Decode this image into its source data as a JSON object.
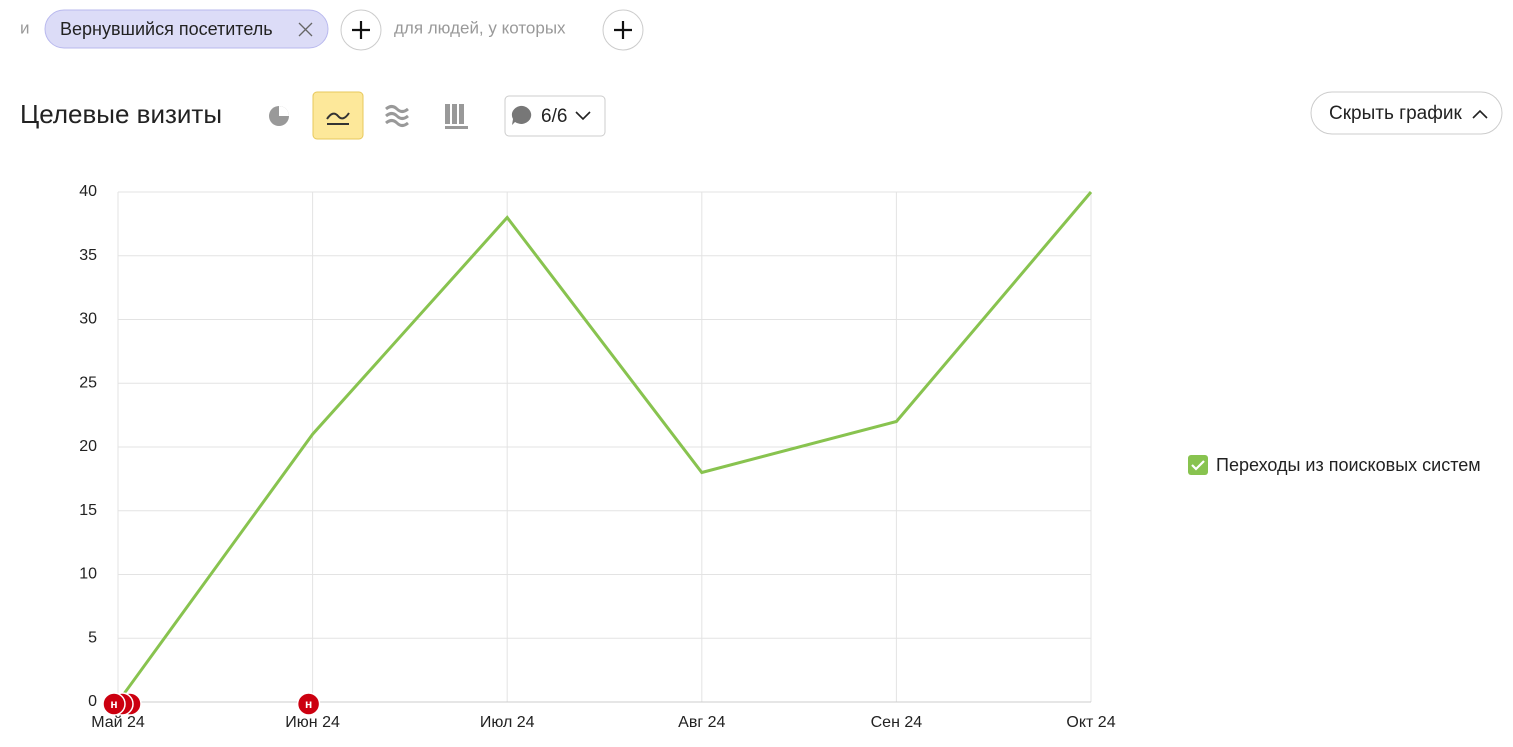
{
  "filter": {
    "conjunction": "и",
    "segment": "Вернувшийся посетитель",
    "condition": "для людей, у которых"
  },
  "header": {
    "comments": "6/6",
    "hide_chart": "Скрыть график"
  },
  "chart_data": {
    "type": "line",
    "title": "Целевые визиты",
    "categories": [
      "Май 24",
      "Июн 24",
      "Июл 24",
      "Авг 24",
      "Сен 24",
      "Окт 24"
    ],
    "series": [
      {
        "name": "Переходы из поисковых систем",
        "color": "#88c34f",
        "values": [
          0,
          21,
          38,
          18,
          22,
          40
        ]
      }
    ],
    "ylim": [
      0,
      40
    ],
    "yticks": [
      0,
      5,
      10,
      15,
      20,
      25,
      30,
      35,
      40
    ],
    "grid": true,
    "annotations": [
      {
        "x": "Май 24",
        "label": "н"
      },
      {
        "x": "Май 24",
        "label": "н"
      },
      {
        "x": "Май 24",
        "label": "н"
      },
      {
        "x": "Июн 24",
        "label": "н"
      }
    ]
  }
}
